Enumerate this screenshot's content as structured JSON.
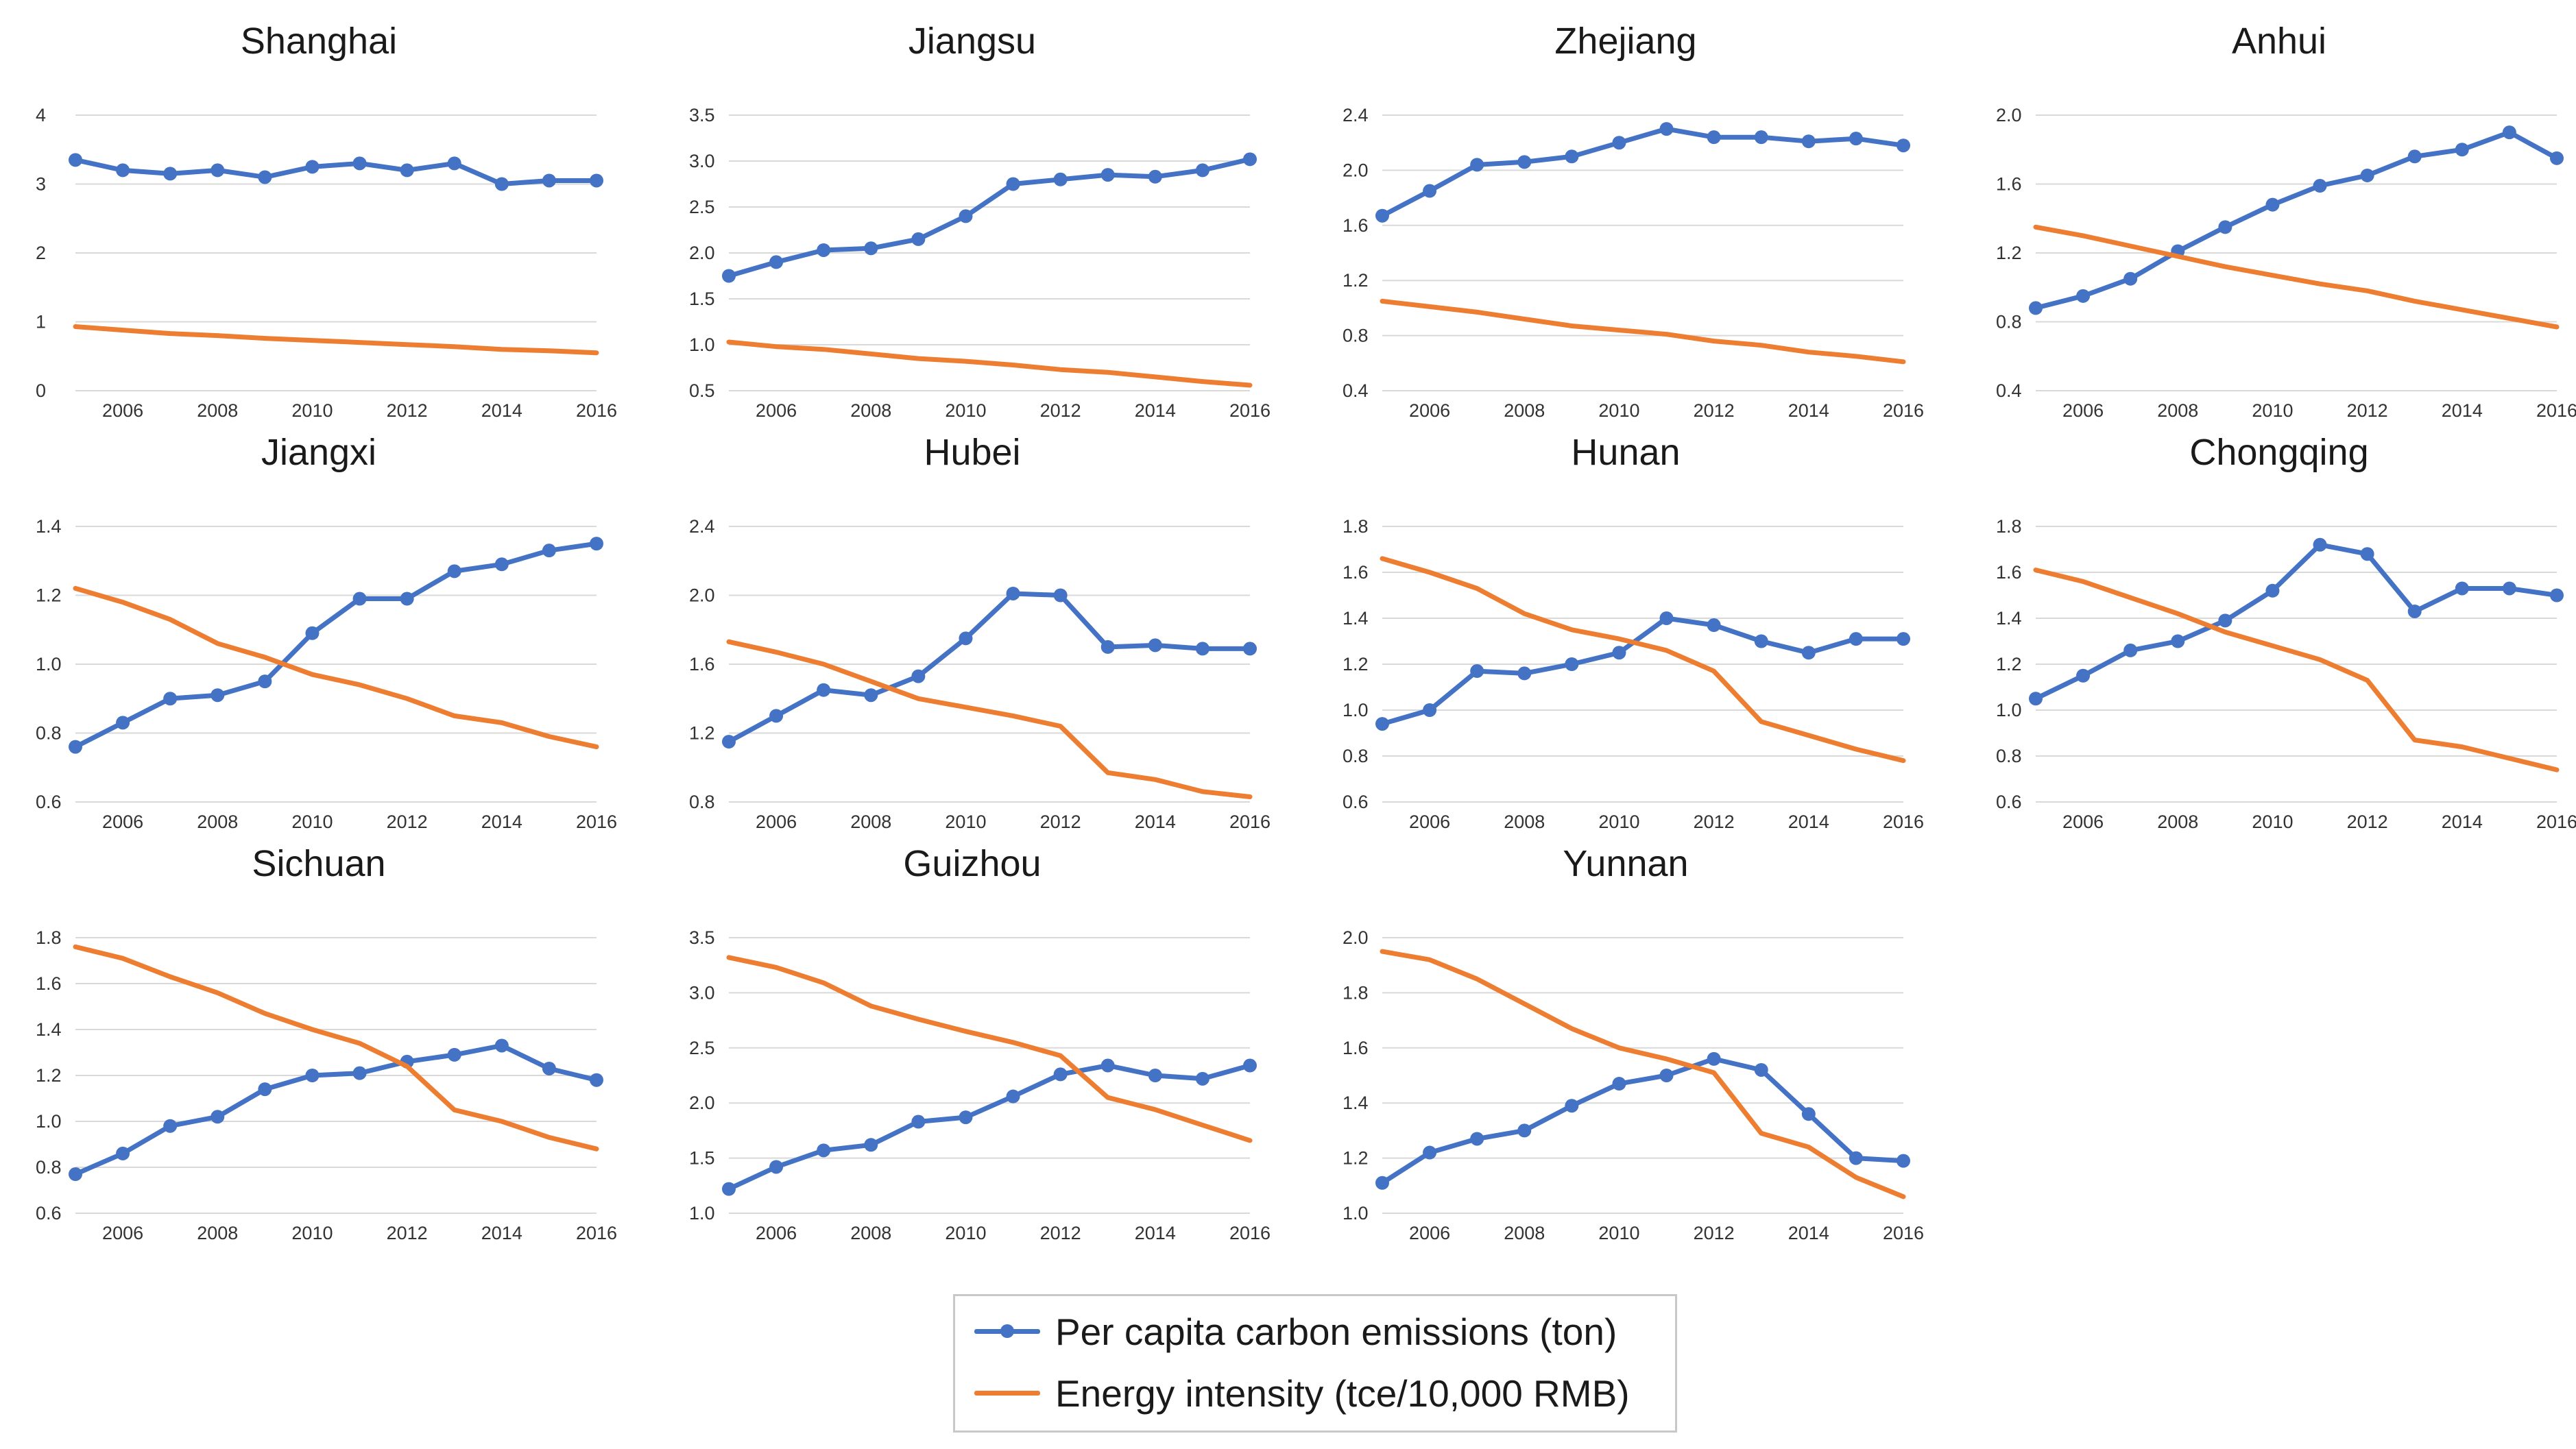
{
  "legend": {
    "series1": "Per capita carbon emissions (ton)",
    "series2": "Energy intensity (tce/10,000 RMB)",
    "color1": "#4472c4",
    "color2": "#ed7d31"
  },
  "chart_data": [
    {
      "type": "line",
      "title": "Shanghai",
      "x": [
        2005,
        2006,
        2007,
        2008,
        2009,
        2010,
        2011,
        2012,
        2013,
        2014,
        2015,
        2016
      ],
      "xticks": [
        "2006",
        "2008",
        "2010",
        "2012",
        "2014",
        "2016"
      ],
      "yticks": [
        "0",
        "1",
        "2",
        "3",
        "4"
      ],
      "ylim": [
        0,
        4
      ],
      "series": [
        {
          "name": "Per capita carbon emissions (ton)",
          "values": [
            3.35,
            3.2,
            3.15,
            3.2,
            3.1,
            3.25,
            3.3,
            3.2,
            3.3,
            3.0,
            3.05,
            3.05
          ]
        },
        {
          "name": "Energy intensity (tce/10,000 RMB)",
          "values": [
            0.93,
            0.88,
            0.83,
            0.8,
            0.76,
            0.73,
            0.7,
            0.67,
            0.64,
            0.6,
            0.58,
            0.55
          ]
        }
      ]
    },
    {
      "type": "line",
      "title": "Jiangsu",
      "x": [
        2005,
        2006,
        2007,
        2008,
        2009,
        2010,
        2011,
        2012,
        2013,
        2014,
        2015,
        2016
      ],
      "xticks": [
        "2006",
        "2008",
        "2010",
        "2012",
        "2014",
        "2016"
      ],
      "yticks": [
        "0.5",
        "1.0",
        "1.5",
        "2.0",
        "2.5",
        "3.0",
        "3.5"
      ],
      "ylim": [
        0.5,
        3.5
      ],
      "series": [
        {
          "name": "Per capita carbon emissions (ton)",
          "values": [
            1.75,
            1.9,
            2.03,
            2.05,
            2.15,
            2.4,
            2.75,
            2.8,
            2.85,
            2.83,
            2.9,
            3.02
          ]
        },
        {
          "name": "Energy intensity (tce/10,000 RMB)",
          "values": [
            1.03,
            0.98,
            0.95,
            0.9,
            0.85,
            0.82,
            0.78,
            0.73,
            0.7,
            0.65,
            0.6,
            0.56
          ]
        }
      ]
    },
    {
      "type": "line",
      "title": "Zhejiang",
      "x": [
        2005,
        2006,
        2007,
        2008,
        2009,
        2010,
        2011,
        2012,
        2013,
        2014,
        2015,
        2016
      ],
      "xticks": [
        "2006",
        "2008",
        "2010",
        "2012",
        "2014",
        "2016"
      ],
      "yticks": [
        "0.4",
        "0.8",
        "1.2",
        "1.6",
        "2.0",
        "2.4"
      ],
      "ylim": [
        0.4,
        2.4
      ],
      "series": [
        {
          "name": "Per capita carbon emissions (ton)",
          "values": [
            1.67,
            1.85,
            2.04,
            2.06,
            2.1,
            2.2,
            2.3,
            2.24,
            2.24,
            2.21,
            2.23,
            2.18
          ]
        },
        {
          "name": "Energy intensity (tce/10,000 RMB)",
          "values": [
            1.05,
            1.01,
            0.97,
            0.92,
            0.87,
            0.84,
            0.81,
            0.76,
            0.73,
            0.68,
            0.65,
            0.61
          ]
        }
      ]
    },
    {
      "type": "line",
      "title": "Anhui",
      "x": [
        2005,
        2006,
        2007,
        2008,
        2009,
        2010,
        2011,
        2012,
        2013,
        2014,
        2015,
        2016
      ],
      "xticks": [
        "2006",
        "2008",
        "2010",
        "2012",
        "2014",
        "2016"
      ],
      "yticks": [
        "0.4",
        "0.8",
        "1.2",
        "1.6",
        "2.0"
      ],
      "ylim": [
        0.4,
        2.0
      ],
      "series": [
        {
          "name": "Per capita carbon emissions (ton)",
          "values": [
            0.88,
            0.95,
            1.05,
            1.21,
            1.35,
            1.48,
            1.59,
            1.65,
            1.76,
            1.8,
            1.9,
            1.75
          ]
        },
        {
          "name": "Energy intensity (tce/10,000 RMB)",
          "values": [
            1.35,
            1.3,
            1.24,
            1.18,
            1.12,
            1.07,
            1.02,
            0.98,
            0.92,
            0.87,
            0.82,
            0.77
          ]
        }
      ]
    },
    {
      "type": "line",
      "title": "Jiangxi",
      "x": [
        2005,
        2006,
        2007,
        2008,
        2009,
        2010,
        2011,
        2012,
        2013,
        2014,
        2015,
        2016
      ],
      "xticks": [
        "2006",
        "2008",
        "2010",
        "2012",
        "2014",
        "2016"
      ],
      "yticks": [
        "0.6",
        "0.8",
        "1.0",
        "1.2",
        "1.4"
      ],
      "ylim": [
        0.6,
        1.4
      ],
      "series": [
        {
          "name": "Per capita carbon emissions (ton)",
          "values": [
            0.76,
            0.83,
            0.9,
            0.91,
            0.95,
            1.09,
            1.19,
            1.19,
            1.27,
            1.29,
            1.33,
            1.35
          ]
        },
        {
          "name": "Energy intensity (tce/10,000 RMB)",
          "values": [
            1.22,
            1.18,
            1.13,
            1.06,
            1.02,
            0.97,
            0.94,
            0.9,
            0.85,
            0.83,
            0.79,
            0.76
          ]
        }
      ]
    },
    {
      "type": "line",
      "title": "Hubei",
      "x": [
        2005,
        2006,
        2007,
        2008,
        2009,
        2010,
        2011,
        2012,
        2013,
        2014,
        2015,
        2016
      ],
      "xticks": [
        "2006",
        "2008",
        "2010",
        "2012",
        "2014",
        "2016"
      ],
      "yticks": [
        "0.8",
        "1.2",
        "1.6",
        "2.0",
        "2.4"
      ],
      "ylim": [
        0.8,
        2.4
      ],
      "series": [
        {
          "name": "Per capita carbon emissions (ton)",
          "values": [
            1.15,
            1.3,
            1.45,
            1.42,
            1.53,
            1.75,
            2.01,
            2.0,
            1.7,
            1.71,
            1.69,
            1.69
          ]
        },
        {
          "name": "Energy intensity (tce/10,000 RMB)",
          "values": [
            1.73,
            1.67,
            1.6,
            1.5,
            1.4,
            1.35,
            1.3,
            1.24,
            0.97,
            0.93,
            0.86,
            0.83
          ]
        }
      ]
    },
    {
      "type": "line",
      "title": "Hunan",
      "x": [
        2005,
        2006,
        2007,
        2008,
        2009,
        2010,
        2011,
        2012,
        2013,
        2014,
        2015,
        2016
      ],
      "xticks": [
        "2006",
        "2008",
        "2010",
        "2012",
        "2014",
        "2016"
      ],
      "yticks": [
        "0.6",
        "0.8",
        "1.0",
        "1.2",
        "1.4",
        "1.6",
        "1.8"
      ],
      "ylim": [
        0.6,
        1.8
      ],
      "series": [
        {
          "name": "Per capita carbon emissions (ton)",
          "values": [
            0.94,
            1.0,
            1.17,
            1.16,
            1.2,
            1.25,
            1.4,
            1.37,
            1.3,
            1.25,
            1.31,
            1.31
          ]
        },
        {
          "name": "Energy intensity (tce/10,000 RMB)",
          "values": [
            1.66,
            1.6,
            1.53,
            1.42,
            1.35,
            1.31,
            1.26,
            1.17,
            0.95,
            0.89,
            0.83,
            0.78
          ]
        }
      ]
    },
    {
      "type": "line",
      "title": "Chongqing",
      "x": [
        2005,
        2006,
        2007,
        2008,
        2009,
        2010,
        2011,
        2012,
        2013,
        2014,
        2015,
        2016
      ],
      "xticks": [
        "2006",
        "2008",
        "2010",
        "2012",
        "2014",
        "2016"
      ],
      "yticks": [
        "0.6",
        "0.8",
        "1.0",
        "1.2",
        "1.4",
        "1.6",
        "1.8"
      ],
      "ylim": [
        0.6,
        1.8
      ],
      "series": [
        {
          "name": "Per capita carbon emissions (ton)",
          "values": [
            1.05,
            1.15,
            1.26,
            1.3,
            1.39,
            1.52,
            1.72,
            1.68,
            1.43,
            1.53,
            1.53,
            1.5
          ]
        },
        {
          "name": "Energy intensity (tce/10,000 RMB)",
          "values": [
            1.61,
            1.56,
            1.49,
            1.42,
            1.34,
            1.28,
            1.22,
            1.13,
            0.87,
            0.84,
            0.79,
            0.74
          ]
        }
      ]
    },
    {
      "type": "line",
      "title": "Sichuan",
      "x": [
        2005,
        2006,
        2007,
        2008,
        2009,
        2010,
        2011,
        2012,
        2013,
        2014,
        2015,
        2016
      ],
      "xticks": [
        "2006",
        "2008",
        "2010",
        "2012",
        "2014",
        "2016"
      ],
      "yticks": [
        "0.6",
        "0.8",
        "1.0",
        "1.2",
        "1.4",
        "1.6",
        "1.8"
      ],
      "ylim": [
        0.6,
        1.8
      ],
      "series": [
        {
          "name": "Per capita carbon emissions (ton)",
          "values": [
            0.77,
            0.86,
            0.98,
            1.02,
            1.14,
            1.2,
            1.21,
            1.26,
            1.29,
            1.33,
            1.23,
            1.18
          ]
        },
        {
          "name": "Energy intensity (tce/10,000 RMB)",
          "values": [
            1.76,
            1.71,
            1.63,
            1.56,
            1.47,
            1.4,
            1.34,
            1.24,
            1.05,
            1.0,
            0.93,
            0.88
          ]
        }
      ]
    },
    {
      "type": "line",
      "title": "Guizhou",
      "x": [
        2005,
        2006,
        2007,
        2008,
        2009,
        2010,
        2011,
        2012,
        2013,
        2014,
        2015,
        2016
      ],
      "xticks": [
        "2006",
        "2008",
        "2010",
        "2012",
        "2014",
        "2016"
      ],
      "yticks": [
        "1.0",
        "1.5",
        "2.0",
        "2.5",
        "3.0",
        "3.5"
      ],
      "ylim": [
        1.0,
        3.5
      ],
      "series": [
        {
          "name": "Per capita carbon emissions (ton)",
          "values": [
            1.22,
            1.42,
            1.57,
            1.62,
            1.83,
            1.87,
            2.06,
            2.26,
            2.34,
            2.25,
            2.22,
            2.34
          ]
        },
        {
          "name": "Energy intensity (tce/10,000 RMB)",
          "values": [
            3.32,
            3.23,
            3.09,
            2.88,
            2.76,
            2.65,
            2.55,
            2.43,
            2.05,
            1.94,
            1.8,
            1.66
          ]
        }
      ]
    },
    {
      "type": "line",
      "title": "Yunnan",
      "x": [
        2005,
        2006,
        2007,
        2008,
        2009,
        2010,
        2011,
        2012,
        2013,
        2014,
        2015,
        2016
      ],
      "xticks": [
        "2006",
        "2008",
        "2010",
        "2012",
        "2014",
        "2016"
      ],
      "yticks": [
        "1.0",
        "1.2",
        "1.4",
        "1.6",
        "1.8",
        "2.0"
      ],
      "ylim": [
        1.0,
        2.0
      ],
      "series": [
        {
          "name": "Per capita carbon emissions (ton)",
          "values": [
            1.11,
            1.22,
            1.27,
            1.3,
            1.39,
            1.47,
            1.5,
            1.56,
            1.52,
            1.36,
            1.2,
            1.19
          ]
        },
        {
          "name": "Energy intensity (tce/10,000 RMB)",
          "values": [
            1.95,
            1.92,
            1.85,
            1.76,
            1.67,
            1.6,
            1.56,
            1.51,
            1.29,
            1.24,
            1.13,
            1.06
          ]
        }
      ]
    }
  ]
}
